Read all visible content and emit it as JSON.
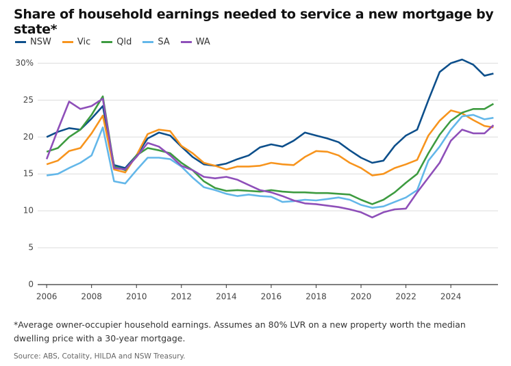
{
  "chart_data": {
    "type": "line",
    "title": "Share of household earnings needed to service a new mortgage by state*",
    "footnote": "*Average owner-occupier household earnings. Assumes an 80% LVR on a new property worth the median dwelling price with a 30-year mortgage.",
    "source": "Source: ABS, Cotality, HILDA and NSW Treasury.",
    "x": [
      2006,
      2006.5,
      2007,
      2007.5,
      2008,
      2008.5,
      2009,
      2009.5,
      2010,
      2010.5,
      2011,
      2011.5,
      2012,
      2012.5,
      2013,
      2013.5,
      2014,
      2014.5,
      2015,
      2015.5,
      2016,
      2016.5,
      2017,
      2017.5,
      2018,
      2018.5,
      2019,
      2019.5,
      2020,
      2020.5,
      2021,
      2021.5,
      2022,
      2022.5,
      2023,
      2023.5,
      2024,
      2024.5,
      2025,
      2025.5,
      2025.9
    ],
    "series": [
      {
        "name": "NSW",
        "color": "#0d4f8b",
        "values": [
          20,
          20.7,
          21.2,
          21,
          22.5,
          24.2,
          16.2,
          15.8,
          17.5,
          19.8,
          20.6,
          20.2,
          18.7,
          17.3,
          16.3,
          16.1,
          16.4,
          17,
          17.5,
          18.6,
          19,
          18.7,
          19.5,
          20.6,
          20.2,
          19.8,
          19.3,
          18.2,
          17.2,
          16.5,
          16.8,
          18.8,
          20.2,
          21,
          25,
          28.8,
          30,
          30.5,
          29.8,
          28.3,
          28.6
        ]
      },
      {
        "name": "Vic",
        "color": "#f7941d",
        "values": [
          16.3,
          16.8,
          18.1,
          18.5,
          20.5,
          22.9,
          15.6,
          15.2,
          17.5,
          20.4,
          21,
          20.8,
          18.8,
          17.8,
          16.5,
          16.1,
          15.6,
          16,
          16,
          16.1,
          16.5,
          16.3,
          16.2,
          17.3,
          18.1,
          18,
          17.5,
          16.5,
          15.8,
          14.8,
          15,
          15.8,
          16.3,
          16.9,
          20.2,
          22.2,
          23.6,
          23.2,
          22.3,
          21.5,
          21.3
        ]
      },
      {
        "name": "Qld",
        "color": "#3d9b40",
        "values": [
          18,
          18.5,
          20,
          21,
          23,
          25.5,
          16,
          15.5,
          17.5,
          18.5,
          18.2,
          17.8,
          16.5,
          15.5,
          14,
          13.1,
          12.7,
          12.8,
          12.7,
          12.6,
          12.8,
          12.6,
          12.5,
          12.5,
          12.4,
          12.4,
          12.3,
          12.2,
          11.5,
          10.9,
          11.5,
          12.5,
          13.8,
          15,
          17.8,
          20.3,
          22.2,
          23.3,
          23.8,
          23.8,
          24.5
        ]
      },
      {
        "name": "SA",
        "color": "#63b7e9",
        "values": [
          14.8,
          15,
          15.8,
          16.5,
          17.5,
          21.3,
          14,
          13.7,
          15.5,
          17.2,
          17.2,
          17,
          16,
          14.5,
          13.2,
          12.8,
          12.3,
          12,
          12.2,
          12,
          11.9,
          11.2,
          11.3,
          11.5,
          11.4,
          11.6,
          11.8,
          11.5,
          10.8,
          10.4,
          10.6,
          11.2,
          11.8,
          12.8,
          16.8,
          18.7,
          21,
          22.8,
          23,
          22.4,
          22.6
        ]
      },
      {
        "name": "WA",
        "color": "#8e4fb9",
        "values": [
          17,
          21,
          24.8,
          23.8,
          24.2,
          25.2,
          15.8,
          15.6,
          17.3,
          19.2,
          18.7,
          17.5,
          16.1,
          15.5,
          14.6,
          14.4,
          14.6,
          14.2,
          13.5,
          12.8,
          12.5,
          12,
          11.4,
          11,
          10.9,
          10.7,
          10.5,
          10.2,
          9.8,
          9.1,
          9.8,
          10.2,
          10.3,
          12.5,
          14.5,
          16.5,
          19.5,
          21,
          20.5,
          20.5,
          21.6
        ]
      }
    ],
    "xlim": [
      2005.6,
      2026.1
    ],
    "xticks": [
      2006,
      2008,
      2010,
      2012,
      2014,
      2016,
      2018,
      2020,
      2022,
      2024
    ],
    "ylim": [
      0,
      30.5
    ],
    "yticks": [
      0,
      5,
      10,
      15,
      20,
      25,
      {
        "value": 30,
        "label": "30%"
      }
    ],
    "grid": true
  }
}
